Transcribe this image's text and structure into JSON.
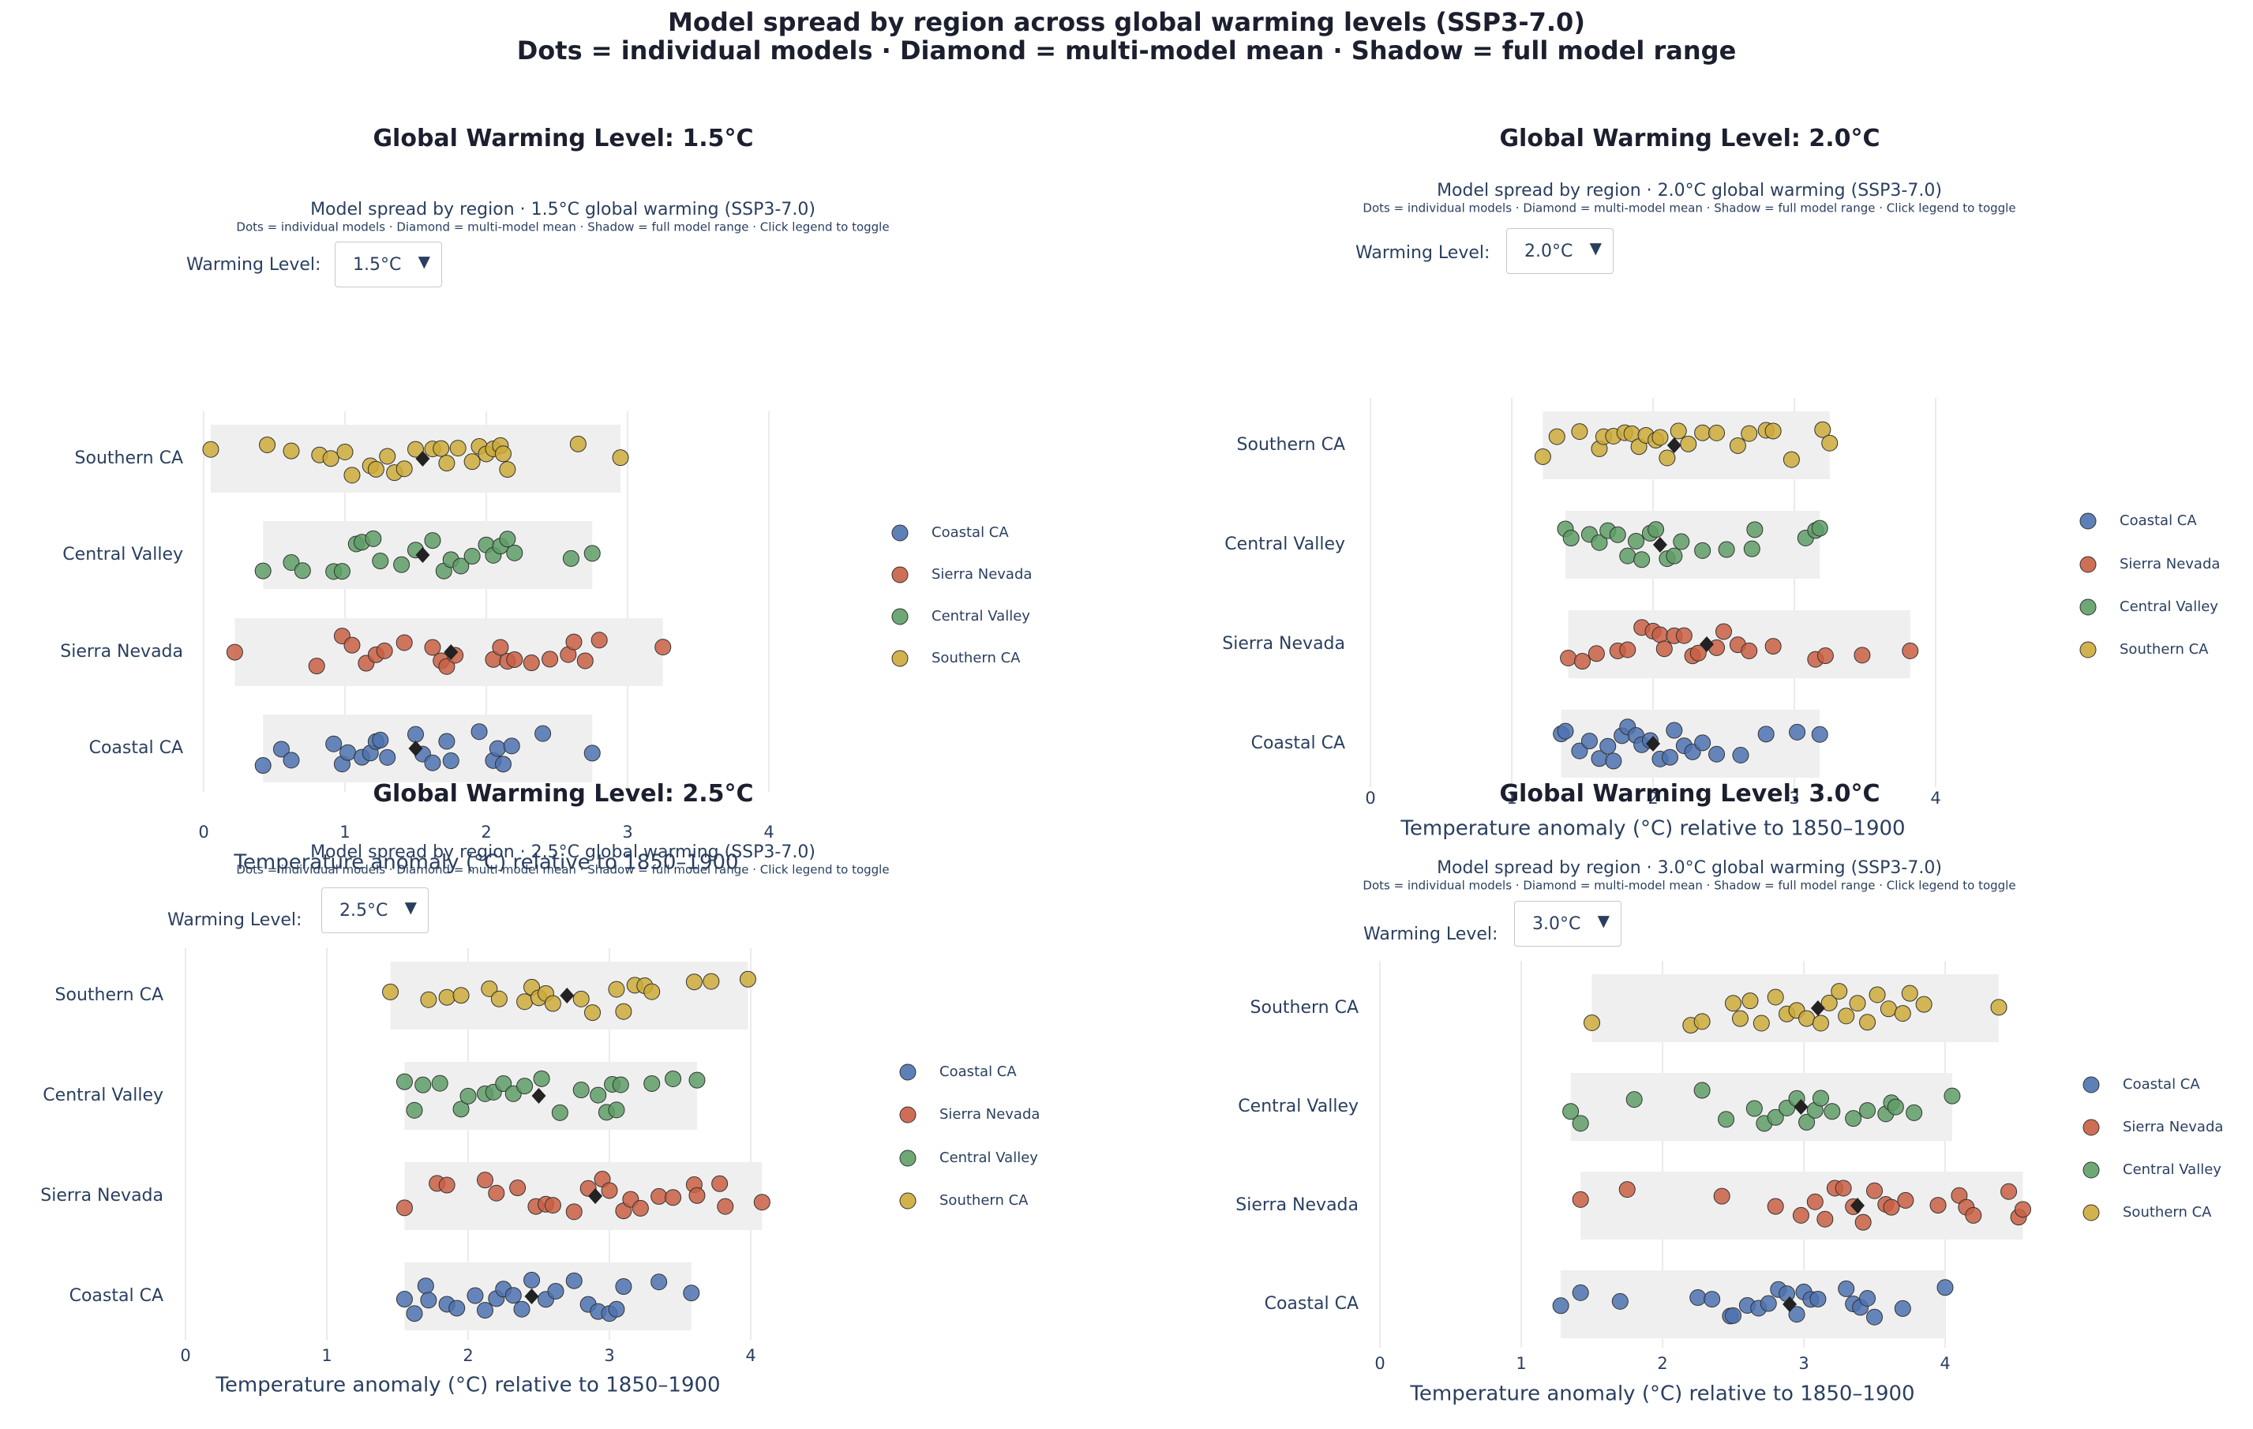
{
  "suptitle": {
    "line1": "Model spread by region across global warming levels (SSP3-7.0)",
    "line2": "Dots = individual models · Diamond = multi-model mean · Shadow = full model range"
  },
  "colors": {
    "Coastal CA": "#4c72b0",
    "Sierra Nevada": "#c95f43",
    "Central Valley": "#5e9e66",
    "Southern CA": "#ccaa3a",
    "mean_marker": "#222222",
    "range_shadow": "#efefef"
  },
  "legend_items": [
    "Coastal CA",
    "Sierra Nevada",
    "Central Valley",
    "Southern CA"
  ],
  "warming_label": "Warming Level:",
  "chart_data": [
    {
      "type": "scatter",
      "title": "Global Warming Level: 1.5°C",
      "subtitle": "Model spread by region  ·  1.5°C global warming (SSP3-7.0)",
      "note": "Dots = individual models · Diamond = multi-model mean · Shadow = full model range · Click legend to toggle",
      "dropdown_value": "1.5°C",
      "xlabel": "Temperature anomaly (°C) relative to 1850–1900",
      "xlim": [
        0,
        4.6
      ],
      "xticks": [
        0,
        1,
        2,
        3,
        4
      ],
      "categories": [
        "Southern CA",
        "Central Valley",
        "Sierra Nevada",
        "Coastal CA"
      ],
      "series": [
        {
          "name": "Southern CA",
          "mean": 1.55,
          "range": [
            0.05,
            2.95
          ],
          "values": [
            0.05,
            0.45,
            0.62,
            0.82,
            0.9,
            1.0,
            1.05,
            1.18,
            1.22,
            1.3,
            1.35,
            1.42,
            1.5,
            1.62,
            1.68,
            1.72,
            1.8,
            1.9,
            1.95,
            2.0,
            2.05,
            2.1,
            2.12,
            2.15,
            2.65,
            2.95
          ]
        },
        {
          "name": "Central Valley",
          "mean": 1.55,
          "range": [
            0.42,
            2.75
          ],
          "values": [
            0.42,
            0.62,
            0.7,
            0.92,
            0.98,
            1.08,
            1.12,
            1.2,
            1.25,
            1.4,
            1.5,
            1.62,
            1.7,
            1.75,
            1.82,
            1.9,
            2.0,
            2.05,
            2.1,
            2.15,
            2.2,
            2.6,
            2.75
          ]
        },
        {
          "name": "Sierra Nevada",
          "mean": 1.75,
          "range": [
            0.22,
            3.25
          ],
          "values": [
            0.22,
            0.8,
            0.98,
            1.05,
            1.15,
            1.22,
            1.28,
            1.42,
            1.62,
            1.68,
            1.72,
            1.78,
            2.05,
            2.1,
            2.15,
            2.2,
            2.32,
            2.45,
            2.58,
            2.62,
            2.7,
            2.8,
            3.25
          ]
        },
        {
          "name": "Coastal CA",
          "mean": 1.5,
          "range": [
            0.42,
            2.75
          ],
          "values": [
            0.42,
            0.55,
            0.62,
            0.92,
            0.98,
            1.02,
            1.12,
            1.18,
            1.22,
            1.25,
            1.3,
            1.5,
            1.55,
            1.62,
            1.72,
            1.75,
            1.95,
            2.05,
            2.08,
            2.12,
            2.18,
            2.4,
            2.75
          ]
        }
      ]
    },
    {
      "type": "scatter",
      "title": "Global Warming Level: 2.0°C",
      "subtitle": "Model spread by region  ·  2.0°C global warming (SSP3-7.0)",
      "note": "Dots = individual models · Diamond = multi-model mean · Shadow = full model range · Click legend to toggle",
      "dropdown_value": "2.0°C",
      "xlabel": "Temperature anomaly (°C) relative to 1850–1900",
      "xlim": [
        0,
        4.6
      ],
      "xticks": [
        0,
        1,
        2,
        3,
        4
      ],
      "categories": [
        "Southern CA",
        "Central Valley",
        "Sierra Nevada",
        "Coastal CA"
      ],
      "series": [
        {
          "name": "Southern CA",
          "mean": 2.15,
          "range": [
            1.22,
            3.25
          ],
          "values": [
            1.22,
            1.32,
            1.48,
            1.62,
            1.65,
            1.72,
            1.8,
            1.85,
            1.9,
            1.95,
            2.02,
            2.05,
            2.1,
            2.18,
            2.25,
            2.35,
            2.45,
            2.6,
            2.68,
            2.8,
            2.85,
            2.98,
            3.2,
            3.25
          ]
        },
        {
          "name": "Central Valley",
          "mean": 2.05,
          "range": [
            1.38,
            3.18
          ],
          "values": [
            1.38,
            1.42,
            1.55,
            1.62,
            1.68,
            1.75,
            1.82,
            1.88,
            1.92,
            1.98,
            2.02,
            2.1,
            2.15,
            2.2,
            2.35,
            2.52,
            2.7,
            2.72,
            3.08,
            3.15,
            3.18
          ]
        },
        {
          "name": "Sierra Nevada",
          "mean": 2.38,
          "range": [
            1.4,
            3.82
          ],
          "values": [
            1.4,
            1.5,
            1.6,
            1.75,
            1.82,
            1.92,
            2.0,
            2.05,
            2.08,
            2.15,
            2.22,
            2.28,
            2.32,
            2.45,
            2.5,
            2.6,
            2.68,
            2.85,
            3.15,
            3.22,
            3.48,
            3.82
          ]
        },
        {
          "name": "Coastal CA",
          "mean": 2.0,
          "range": [
            1.35,
            3.18
          ],
          "values": [
            1.35,
            1.38,
            1.48,
            1.55,
            1.62,
            1.68,
            1.72,
            1.78,
            1.82,
            1.88,
            1.92,
            1.98,
            2.05,
            2.12,
            2.15,
            2.22,
            2.28,
            2.35,
            2.45,
            2.62,
            2.8,
            3.02,
            3.18
          ]
        }
      ]
    },
    {
      "type": "scatter",
      "title": "Global Warming Level: 2.5°C",
      "subtitle": "Model spread by region  ·  2.5°C global warming (SSP3-7.0)",
      "note": "Dots = individual models · Diamond = multi-model mean · Shadow = full model range · Click legend to toggle",
      "dropdown_value": "2.5°C",
      "xlabel": "Temperature anomaly (°C) relative to 1850–1900",
      "xlim": [
        0,
        4.6
      ],
      "xticks": [
        0,
        1,
        2,
        3,
        4
      ],
      "categories": [
        "Southern CA",
        "Central Valley",
        "Sierra Nevada",
        "Coastal CA"
      ],
      "series": [
        {
          "name": "Southern CA",
          "mean": 2.7,
          "range": [
            1.45,
            3.98
          ],
          "values": [
            1.45,
            1.72,
            1.85,
            1.95,
            2.15,
            2.22,
            2.4,
            2.45,
            2.5,
            2.55,
            2.6,
            2.8,
            2.88,
            3.05,
            3.1,
            3.18,
            3.25,
            3.3,
            3.6,
            3.72,
            3.98
          ]
        },
        {
          "name": "Central Valley",
          "mean": 2.5,
          "range": [
            1.55,
            3.62
          ],
          "values": [
            1.55,
            1.62,
            1.68,
            1.8,
            1.95,
            2.0,
            2.12,
            2.18,
            2.25,
            2.32,
            2.4,
            2.52,
            2.65,
            2.8,
            2.92,
            2.98,
            3.02,
            3.05,
            3.08,
            3.3,
            3.45,
            3.62
          ]
        },
        {
          "name": "Sierra Nevada",
          "mean": 2.9,
          "range": [
            1.55,
            4.08
          ],
          "values": [
            1.55,
            1.78,
            1.85,
            2.12,
            2.2,
            2.35,
            2.48,
            2.55,
            2.6,
            2.75,
            2.85,
            2.95,
            3.0,
            3.1,
            3.15,
            3.22,
            3.35,
            3.45,
            3.6,
            3.62,
            3.78,
            3.82,
            4.08
          ]
        },
        {
          "name": "Coastal CA",
          "mean": 2.45,
          "range": [
            1.55,
            3.58
          ],
          "values": [
            1.55,
            1.62,
            1.7,
            1.72,
            1.85,
            1.92,
            2.05,
            2.12,
            2.2,
            2.25,
            2.32,
            2.38,
            2.45,
            2.55,
            2.62,
            2.75,
            2.85,
            2.92,
            3.0,
            3.05,
            3.1,
            3.35,
            3.58
          ]
        }
      ]
    },
    {
      "type": "scatter",
      "title": "Global Warming Level: 3.0°C",
      "subtitle": "Model spread by region  ·  3.0°C global warming (SSP3-7.0)",
      "note": "Dots = individual models · Diamond = multi-model mean · Shadow = full model range · Click legend to toggle",
      "dropdown_value": "3.0°C",
      "xlabel": "Temperature anomaly (°C) relative to 1850–1900",
      "xlim": [
        0,
        4.6
      ],
      "xticks": [
        0,
        1,
        2,
        3,
        4
      ],
      "categories": [
        "Southern CA",
        "Central Valley",
        "Sierra Nevada",
        "Coastal CA"
      ],
      "series": [
        {
          "name": "Southern CA",
          "mean": 3.1,
          "range": [
            1.5,
            4.38
          ],
          "values": [
            1.5,
            2.2,
            2.28,
            2.5,
            2.55,
            2.62,
            2.7,
            2.8,
            2.88,
            2.95,
            3.02,
            3.12,
            3.18,
            3.25,
            3.3,
            3.38,
            3.45,
            3.52,
            3.6,
            3.7,
            3.75,
            3.85,
            4.38
          ]
        },
        {
          "name": "Central Valley",
          "mean": 2.98,
          "range": [
            1.35,
            4.05
          ],
          "values": [
            1.35,
            1.42,
            1.8,
            2.28,
            2.45,
            2.65,
            2.72,
            2.8,
            2.88,
            2.95,
            3.02,
            3.08,
            3.12,
            3.2,
            3.35,
            3.45,
            3.58,
            3.62,
            3.65,
            3.78,
            4.05
          ]
        },
        {
          "name": "Sierra Nevada",
          "mean": 3.38,
          "range": [
            1.42,
            4.55
          ],
          "values": [
            1.42,
            1.75,
            2.42,
            2.8,
            2.98,
            3.08,
            3.15,
            3.22,
            3.28,
            3.35,
            3.42,
            3.5,
            3.58,
            3.62,
            3.72,
            3.95,
            4.1,
            4.15,
            4.2,
            4.45,
            4.52,
            4.55
          ]
        },
        {
          "name": "Coastal CA",
          "mean": 2.9,
          "range": [
            1.28,
            4.0
          ],
          "values": [
            1.28,
            1.42,
            1.7,
            2.25,
            2.35,
            2.48,
            2.5,
            2.6,
            2.68,
            2.75,
            2.82,
            2.88,
            2.95,
            3.0,
            3.05,
            3.1,
            3.3,
            3.35,
            3.4,
            3.45,
            3.5,
            3.7,
            4.0
          ]
        }
      ]
    }
  ]
}
